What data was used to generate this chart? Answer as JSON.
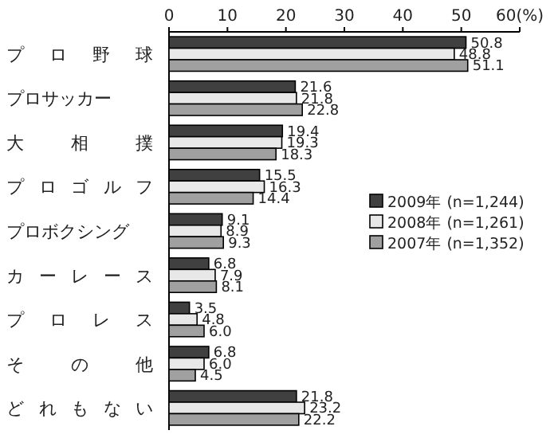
{
  "chart_data": {
    "type": "bar",
    "orientation": "horizontal",
    "categories": [
      "プロ野球",
      "プロサッカー",
      "大相撲",
      "プロゴルフ",
      "プロボクシング",
      "カーレース",
      "プロレス",
      "その他",
      "どれもない"
    ],
    "series": [
      {
        "name": "2009年 (n=1,244)",
        "color": "#404040",
        "values": [
          50.8,
          21.6,
          19.4,
          15.5,
          9.1,
          6.8,
          3.5,
          6.8,
          21.8
        ],
        "value_labels": [
          "50.8",
          "21.6",
          "19.4",
          "15.5",
          "9.1",
          "6.8",
          "3.5",
          "6.8",
          "21.8"
        ]
      },
      {
        "name": "2008年 (n=1,261)",
        "color": "#e8e8e8",
        "values": [
          48.8,
          21.8,
          19.3,
          16.3,
          8.9,
          7.9,
          4.8,
          6.0,
          23.2
        ],
        "value_labels": [
          "48.8",
          "21.8",
          "19.3",
          "16.3",
          "8.9",
          "7.9",
          "4.8",
          "6.0",
          "23.2"
        ]
      },
      {
        "name": "2007年 (n=1,352)",
        "color": "#a0a0a0",
        "values": [
          51.1,
          22.8,
          18.3,
          14.4,
          9.3,
          8.1,
          6.0,
          4.5,
          22.2
        ],
        "value_labels": [
          "51.1",
          "22.8",
          "18.3",
          "14.4",
          "9.3",
          "8.1",
          "6.0",
          "4.5",
          "22.2"
        ]
      }
    ],
    "xlim": [
      0,
      60
    ],
    "xticks": [
      0,
      10,
      20,
      30,
      40,
      50,
      {
        "value": 60,
        "label": "60(%)"
      }
    ],
    "grid": false,
    "legend": "right"
  }
}
